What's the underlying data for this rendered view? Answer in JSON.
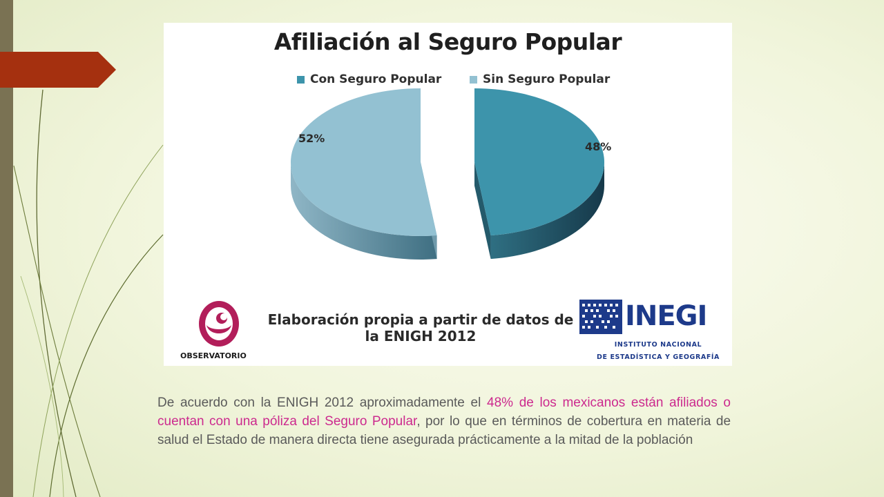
{
  "slide": {
    "accent_colors": {
      "left_bar": "#7a7253",
      "arrow_tab": "#a5300f",
      "highlight_text": "#cc2a8e",
      "body_text": "#5a5a5a"
    }
  },
  "chart_data": {
    "type": "pie",
    "title": "Afiliación al Seguro Popular",
    "legend_position": "top",
    "series": [
      {
        "name": "Con Seguro Popular",
        "value": 48,
        "label": "48%",
        "color": "#3d94ab"
      },
      {
        "name": "Sin Seguro Popular",
        "value": 52,
        "label": "52%",
        "color": "#93c1d2"
      }
    ],
    "style": "3d-exploded"
  },
  "source_note": {
    "line1": "Elaboración propia a partir de datos de",
    "line2": "la ENIGH 2012"
  },
  "logos": {
    "observatorio": {
      "text": "OBSERVATORIO",
      "color": "#b21e5a",
      "icon": "observatorio-logo-icon"
    },
    "inegi": {
      "word": "INEGI",
      "sub_line1": "INSTITUTO NACIONAL",
      "sub_line2": "DE ESTADÍSTICA Y GEOGRAFÍA",
      "color": "#1d3a8a",
      "icon": "inegi-logo-icon"
    }
  },
  "body": {
    "part1": "De acuerdo con la ENIGH 2012 aproximadamente el ",
    "highlight": "48% de los mexicanos están afiliados o cuentan con una póliza del Seguro Popular",
    "part2": ", por lo que en términos de cobertura en materia de salud el Estado de manera directa tiene asegurada prácticamente a la mitad de la población"
  }
}
